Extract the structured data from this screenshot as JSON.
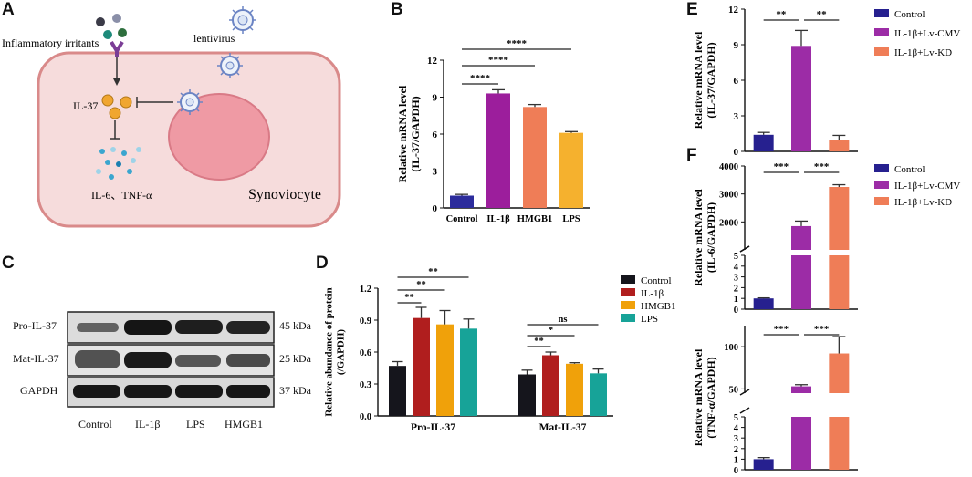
{
  "panels": {
    "a": {
      "letter": "A",
      "labels": {
        "irritants": "Inflammatory irritants",
        "lentivirus": "lentivirus",
        "il37": "IL-37",
        "cytokines": "IL-6、TNF-α",
        "cell": "Synoviocyte"
      },
      "colors": {
        "cell_fill": "#f6dcdc",
        "cell_border": "#d98a8a",
        "nucleus": "#ef9aa4",
        "receptor": "#7b3e96"
      }
    },
    "b": {
      "letter": "B"
    },
    "c": {
      "letter": "C",
      "rows": [
        {
          "name": "Pro-IL-37",
          "kda": "45 kDa"
        },
        {
          "name": "Mat-IL-37",
          "kda": "25 kDa"
        },
        {
          "name": "GAPDH",
          "kda": "37 kDa"
        }
      ],
      "lanes": [
        "Control",
        "IL-1β",
        "LPS",
        "HMGB1"
      ]
    },
    "d": {
      "letter": "D"
    },
    "e": {
      "letter": "E"
    },
    "f": {
      "letter": "F"
    }
  },
  "chart_data": [
    {
      "id": "B",
      "type": "bar",
      "categories": [
        "Control",
        "IL-1β",
        "HMGB1",
        "LPS"
      ],
      "values": [
        1.0,
        9.3,
        8.2,
        6.1
      ],
      "errors": [
        0.1,
        0.3,
        0.2,
        0.1
      ],
      "colors": [
        "#2c2c9c",
        "#9c1e9c",
        "#ef7d57",
        "#f5b12e"
      ],
      "ylabel": [
        "Relative mRNA level",
        "(IL-37/GAPDH)"
      ],
      "ylim": [
        0,
        12
      ],
      "yticks": [
        "0",
        "3",
        "6",
        "9",
        "12"
      ],
      "significance": [
        {
          "from": 0,
          "to": 1,
          "label": "****"
        },
        {
          "from": 0,
          "to": 2,
          "label": "****"
        },
        {
          "from": 0,
          "to": 3,
          "label": "****"
        }
      ]
    },
    {
      "id": "D",
      "type": "bar",
      "groups": [
        "Pro-IL-37",
        "Mat-IL-37"
      ],
      "series": [
        {
          "name": "Control",
          "color": "#15151c",
          "values": [
            0.47,
            0.39
          ],
          "errors": [
            0.04,
            0.04
          ]
        },
        {
          "name": "IL-1β",
          "color": "#b01e1e",
          "values": [
            0.92,
            0.57
          ],
          "errors": [
            0.1,
            0.03
          ]
        },
        {
          "name": "HMGB1",
          "color": "#f0a10a",
          "values": [
            0.86,
            0.49
          ],
          "errors": [
            0.13,
            0.01
          ]
        },
        {
          "name": "LPS",
          "color": "#17a398",
          "values": [
            0.82,
            0.4
          ],
          "errors": [
            0.09,
            0.04
          ]
        }
      ],
      "ylabel": [
        "Relative abundance of protein",
        "(/GAPDH)"
      ],
      "ylim": [
        0,
        1.2
      ],
      "yticks": [
        "0.0",
        "0.3",
        "0.6",
        "0.9",
        "1.2"
      ],
      "significance": [
        {
          "group": 0,
          "from": 0,
          "to": 1,
          "label": "**"
        },
        {
          "group": 0,
          "from": 0,
          "to": 2,
          "label": "**"
        },
        {
          "group": 0,
          "from": 0,
          "to": 3,
          "label": "**"
        },
        {
          "group": 1,
          "from": 0,
          "to": 1,
          "label": "**"
        },
        {
          "group": 1,
          "from": 0,
          "to": 2,
          "label": "*"
        },
        {
          "group": 1,
          "from": 0,
          "to": 3,
          "label": "ns"
        }
      ]
    },
    {
      "id": "E",
      "type": "bar",
      "categories": [
        "Control",
        "IL-1β+Lv-CMV",
        "IL-1β+Lv-KD"
      ],
      "values": [
        1.4,
        8.9,
        0.95
      ],
      "errors": [
        0.2,
        1.3,
        0.4
      ],
      "colors": [
        "#26208f",
        "#9c2ca6",
        "#ef7d57"
      ],
      "ylabel": [
        "Relative mRNA level",
        "(IL-37/GAPDH)"
      ],
      "ylim": [
        0,
        12
      ],
      "yticks": [
        "0",
        "3",
        "6",
        "9",
        "12"
      ],
      "significance": [
        {
          "from": 0,
          "to": 1,
          "label": "**"
        },
        {
          "from": 1,
          "to": 2,
          "label": "**"
        }
      ]
    },
    {
      "id": "F-IL6",
      "type": "bar",
      "broken_axis": true,
      "categories": [
        "Control",
        "IL-1β+Lv-CMV",
        "IL-1β+Lv-KD"
      ],
      "values": [
        1.0,
        1850,
        3250
      ],
      "errors": [
        0.05,
        180,
        80
      ],
      "colors": [
        "#26208f",
        "#9c2ca6",
        "#ef7d57"
      ],
      "ylabel": [
        "Relative mRNA level",
        "(IL-6/GAPDH)"
      ],
      "lower_range": [
        0,
        5
      ],
      "upper_range": [
        1000,
        4000
      ],
      "yticks_lower": [
        "0",
        "1",
        "2",
        "3",
        "4",
        "5"
      ],
      "yticks_upper": [
        "2000",
        "3000",
        "4000"
      ],
      "significance": [
        {
          "from": 0,
          "to": 1,
          "label": "***"
        },
        {
          "from": 1,
          "to": 2,
          "label": "***"
        }
      ]
    },
    {
      "id": "F-TNF",
      "type": "bar",
      "broken_axis": true,
      "categories": [
        "Control",
        "IL-1β+Lv-CMV",
        "IL-1β+Lv-KD"
      ],
      "values": [
        1.0,
        53,
        92
      ],
      "errors": [
        0.15,
        2,
        20
      ],
      "colors": [
        "#26208f",
        "#9c2ca6",
        "#ef7d57"
      ],
      "ylabel": [
        "Relative mRNA level",
        "(TNF-α/GAPDH)"
      ],
      "lower_range": [
        0,
        5
      ],
      "upper_range": [
        45,
        125
      ],
      "yticks_lower": [
        "0",
        "1",
        "2",
        "3",
        "4",
        "5"
      ],
      "yticks_upper": [
        "50",
        "100"
      ],
      "significance": [
        {
          "from": 0,
          "to": 1,
          "label": "***"
        },
        {
          "from": 1,
          "to": 2,
          "label": "***"
        }
      ]
    }
  ]
}
